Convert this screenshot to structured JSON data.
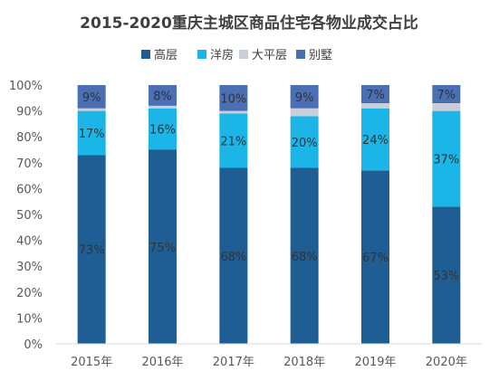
{
  "chart_data": {
    "type": "bar",
    "stacked": true,
    "title": "2015-2020重庆主城区商品住宅各物业成交占比",
    "categories": [
      "2015年",
      "2016年",
      "2017年",
      "2018年",
      "2019年",
      "2020年"
    ],
    "series": [
      {
        "name": "高层",
        "values": [
          73,
          75,
          68,
          68,
          67,
          53
        ],
        "labels": [
          "73%",
          "75%",
          "68%",
          "68%",
          "67%",
          "53%"
        ],
        "color": "#1F5E94"
      },
      {
        "name": "洋房",
        "values": [
          17,
          16,
          21,
          20,
          24,
          37
        ],
        "labels": [
          "17%",
          "16%",
          "21%",
          "20%",
          "24%",
          "37%"
        ],
        "color": "#1BB5E8"
      },
      {
        "name": "大平层",
        "values": [
          1,
          1,
          1,
          3,
          2,
          3
        ],
        "labels": [
          "",
          "",
          "",
          "",
          "",
          ""
        ],
        "color": "#C8CFD9"
      },
      {
        "name": "别墅",
        "values": [
          9,
          8,
          10,
          9,
          7,
          7
        ],
        "labels": [
          "9%",
          "8%",
          "10%",
          "9%",
          "7%",
          "7%"
        ],
        "color": "#4A6FB5"
      }
    ],
    "yticks": [
      "0%",
      "10%",
      "20%",
      "30%",
      "40%",
      "50%",
      "60%",
      "70%",
      "80%",
      "90%",
      "100%"
    ],
    "ylim": [
      0,
      100
    ],
    "legend_position": "top",
    "grid": false
  }
}
